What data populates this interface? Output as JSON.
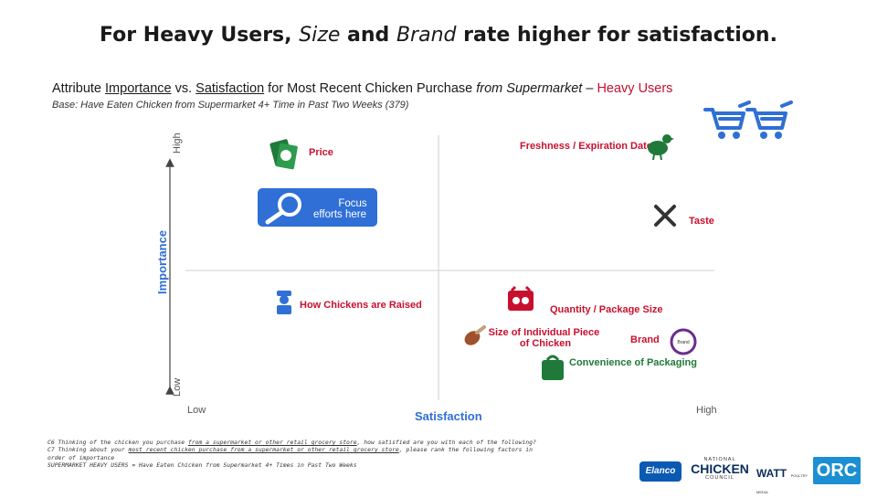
{
  "header": {
    "title_part1": "For Heavy Users,",
    "title_italic1": "Size",
    "title_part2": "and",
    "title_italic2": "Brand",
    "title_part3": "rate higher for satisfaction.",
    "subtitle_prefix": "Attribute",
    "subtitle_u1": "Importance",
    "subtitle_vs": "vs.",
    "subtitle_u2": "Satisfaction",
    "subtitle_mid": "for Most Recent Chicken Purchase",
    "subtitle_italic": "from Supermarket",
    "subtitle_dash": "–",
    "subtitle_red": "Heavy Users",
    "base": "Base: Have Eaten Chicken from Supermarket 4+ Time in Past Two Weeks (379)"
  },
  "chart_data": {
    "type": "scatter",
    "xlabel": "Satisfaction",
    "ylabel": "Importance",
    "x_low": "Low",
    "x_high": "High",
    "y_low": "Low",
    "y_high": "High",
    "focus_label_line1": "Focus",
    "focus_label_line2": "efforts here",
    "points": [
      {
        "label": "Price",
        "x": 0.27,
        "y": 0.88,
        "color": "#c8102e",
        "icon": "money-icon"
      },
      {
        "label": "Freshness / Expiration Date",
        "x": 0.73,
        "y": 0.9,
        "color": "#c8102e",
        "icon": "chicken-icon"
      },
      {
        "label": "Taste",
        "x": 0.93,
        "y": 0.67,
        "color": "#c8102e",
        "icon": "fork-knife-icon"
      },
      {
        "label": "How Chickens are Raised",
        "x": 0.24,
        "y": 0.34,
        "color": "#c8102e",
        "icon": "farmer-icon"
      },
      {
        "label": "Quantity / Package Size",
        "x": 0.62,
        "y": 0.33,
        "color": "#c8102e",
        "icon": "package-icon"
      },
      {
        "label": "Size of Individual Piece of Chicken",
        "x": 0.54,
        "y": 0.18,
        "color": "#c8102e",
        "icon": "drumstick-icon"
      },
      {
        "label": "Brand",
        "x": 0.81,
        "y": 0.18,
        "color": "#c8102e",
        "icon": "brand-badge-icon",
        "badge_text": "Brand"
      },
      {
        "label": "Convenience of Packaging",
        "x": 0.71,
        "y": 0.09,
        "color": "#1f7a3a",
        "icon": "bag-icon"
      }
    ]
  },
  "notes": {
    "line1_a": "C6  Thinking of the chicken you purchase",
    "line1_u": "from a supermarket or other retail grocery store",
    "line1_b": ", how satisfied are you with each of the following?",
    "line2_a": "C7  Thinking about your",
    "line2_u": "most recent chicken purchase from a supermarket or other retail grocery store",
    "line2_b": ", please rank the following factors in",
    "line3": "order of importance",
    "line4": "SUPERMARKET HEAVY USERS = Have Eaten Chicken from Supermarket 4+ Times in Past Two Weeks"
  },
  "logos": {
    "elanco": "Elanco",
    "ncc_top": "NATIONAL",
    "ncc_main": "CHICKEN",
    "ncc_bottom": "COUNCIL",
    "watt": "WATT",
    "watt_small": "POULTRY MEDIA",
    "orc": "ORC"
  },
  "colors": {
    "accent_red": "#c8102e",
    "accent_green": "#1f7a3a",
    "accent_blue": "#2f6fd6",
    "axis_grey": "#cccccc"
  }
}
